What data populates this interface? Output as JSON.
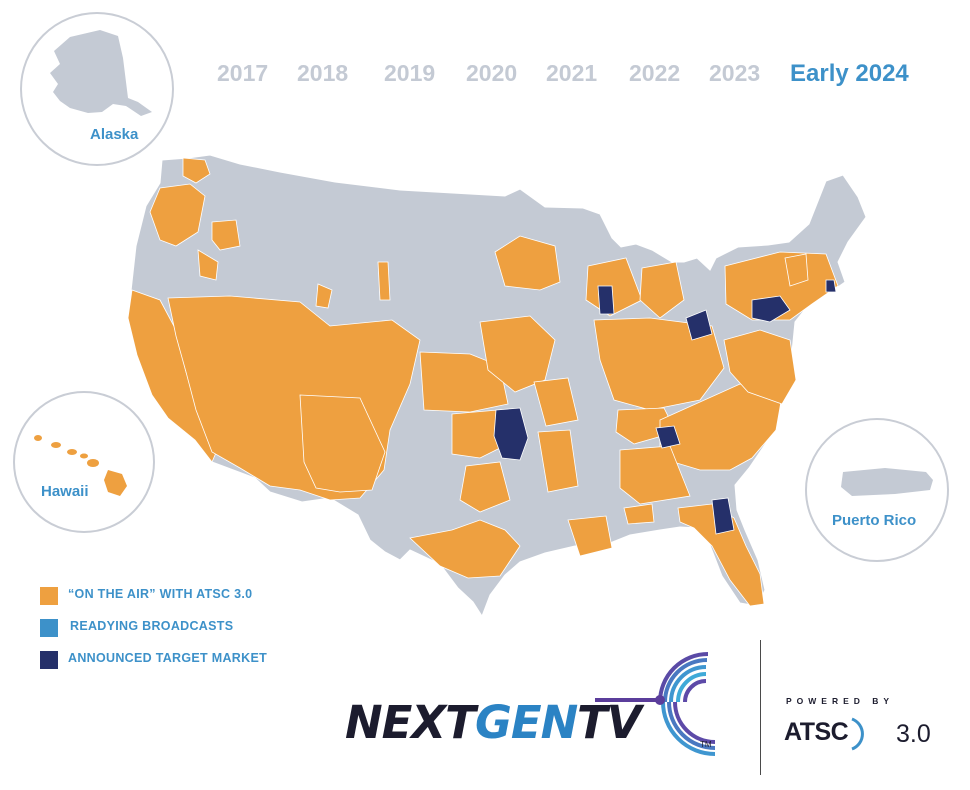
{
  "timeline": {
    "years": [
      "2017",
      "2018",
      "2019",
      "2020",
      "2021",
      "2022",
      "2023",
      "Early 2024"
    ],
    "selected": "Early 2024"
  },
  "insets": {
    "alaska": "Alaska",
    "hawaii": "Hawaii",
    "puerto_rico": "Puerto Rico"
  },
  "legend": [
    {
      "label": "“ON THE AIR” WITH ATSC 3.0",
      "color": "#eea040"
    },
    {
      "label": "READYING BROADCASTS",
      "color": "#3d91c9"
    },
    {
      "label": "ANNOUNCED TARGET MARKET",
      "color": "#25306a"
    }
  ],
  "colors": {
    "base": "#c4cad4",
    "on_air": "#eea040",
    "target": "#25306a",
    "accent": "#3d91c9",
    "brand_blue": "#2b83c4",
    "brand_purple": "#5b3d9b"
  },
  "brand": {
    "word_part1": "NEXT",
    "word_part2": "GEN",
    "word_part3": "TV",
    "trademark": "TM",
    "powered_by": "POWERED BY",
    "atsc": "ATSC",
    "atsc_version": "3.0"
  }
}
